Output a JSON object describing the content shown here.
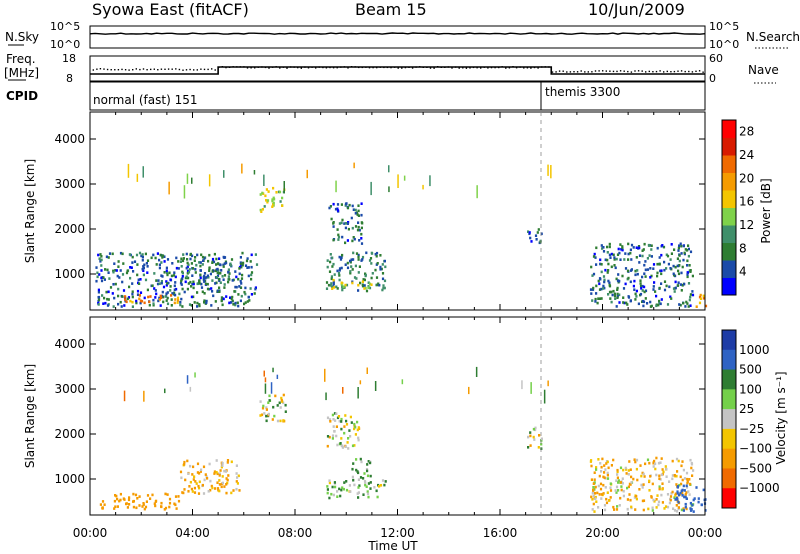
{
  "header": {
    "station": "Syowa East (fitACF)",
    "beam": "Beam 15",
    "date": "10/Jun/2009"
  },
  "top_panels": {
    "nsky_label": "N.Sky",
    "nsearch_label": "N.Search",
    "nsky_ticks": [
      "10^5",
      "10^0"
    ],
    "nsearch_ticks": [
      "10^5",
      "10^0"
    ],
    "freq_label_line1": "Freq.",
    "freq_label_line2": "[MHz]",
    "freq_ticks": [
      "18",
      "8"
    ],
    "nave_label": "Nave",
    "nave_ticks": [
      "60",
      "0"
    ],
    "cpid_label": "CPID",
    "cpid_segments": [
      "normal (fast) 151",
      "themis 3300"
    ]
  },
  "x_axis": {
    "label": "Time UT",
    "ticks": [
      "00:00",
      "04:00",
      "08:00",
      "12:00",
      "16:00",
      "20:00",
      "00:00"
    ]
  },
  "colors": {
    "power": [
      "#0000ff",
      "#1a4aa8",
      "#2e7d32",
      "#3f8f6a",
      "#7fd24a",
      "#f3c500",
      "#f59b00",
      "#f06a00",
      "#d81b00",
      "#ff0000"
    ],
    "velocity": [
      "#1e3ca6",
      "#2f63c4",
      "#2e7d32",
      "#74d04a",
      "#c4c4c4",
      "#f3c500",
      "#f59b00",
      "#f06a00",
      "#ff0000"
    ]
  },
  "chart_data": [
    {
      "type": "heatmap",
      "quantity": "Power",
      "ylabel": "Slant Range [km]",
      "yticks": [
        "1000",
        "2000",
        "3000",
        "4000"
      ],
      "ylim": [
        200,
        4600
      ],
      "xlim": [
        0,
        24
      ],
      "colorbar": {
        "title": "Power [dB]",
        "ticks": [
          "4",
          "8",
          "12",
          "16",
          "20",
          "24",
          "28"
        ],
        "range": [
          0,
          30
        ]
      },
      "blobs": [
        {
          "t0": 0.2,
          "t1": 6.5,
          "r0": 300,
          "r1": 1500,
          "v": 6
        },
        {
          "t0": 1.3,
          "t1": 3.5,
          "r0": 380,
          "r1": 560,
          "v": 20
        },
        {
          "t0": 3.5,
          "t1": 5.5,
          "r0": 800,
          "r1": 1350,
          "v": 8
        },
        {
          "t0": 6.6,
          "t1": 7.6,
          "r0": 2400,
          "r1": 2950,
          "v": 14
        },
        {
          "t0": 9.2,
          "t1": 11.5,
          "r0": 650,
          "r1": 1500,
          "v": 8
        },
        {
          "t0": 9.3,
          "t1": 11.0,
          "r0": 700,
          "r1": 900,
          "v": 14
        },
        {
          "t0": 9.3,
          "t1": 10.6,
          "r0": 1700,
          "r1": 2600,
          "v": 6
        },
        {
          "t0": 17.0,
          "t1": 17.6,
          "r0": 1700,
          "r1": 2100,
          "v": 6
        },
        {
          "t0": 19.5,
          "t1": 23.5,
          "r0": 300,
          "r1": 1700,
          "v": 6
        },
        {
          "t0": 23.5,
          "t1": 24.0,
          "r0": 300,
          "r1": 600,
          "v": 18
        }
      ]
    },
    {
      "type": "heatmap",
      "quantity": "Velocity",
      "ylabel": "Slant Range [km]",
      "yticks": [
        "1000",
        "2000",
        "3000",
        "4000"
      ],
      "ylim": [
        200,
        4600
      ],
      "xlim": [
        0,
        24
      ],
      "colorbar": {
        "title": "Velocity [m s⁻¹]",
        "ticks": [
          "1000",
          "500",
          "100",
          "25",
          "−25",
          "−100",
          "−500",
          "−1000"
        ]
      },
      "blobs": [
        {
          "t0": 0.3,
          "t1": 3.5,
          "r0": 350,
          "r1": 700,
          "v": -200
        },
        {
          "t0": 3.5,
          "t1": 5.8,
          "r0": 700,
          "r1": 1450,
          "v": -80
        },
        {
          "t0": 6.6,
          "t1": 7.6,
          "r0": 2300,
          "r1": 2950,
          "v": 0
        },
        {
          "t0": 9.2,
          "t1": 11.5,
          "r0": 600,
          "r1": 1000,
          "v": 60
        },
        {
          "t0": 10.2,
          "t1": 11.0,
          "r0": 1000,
          "r1": 1500,
          "v": 80
        },
        {
          "t0": 9.2,
          "t1": 10.5,
          "r0": 1700,
          "r1": 2500,
          "v": 0
        },
        {
          "t0": 17.0,
          "t1": 17.6,
          "r0": 1700,
          "r1": 2200,
          "v": 0
        },
        {
          "t0": 19.5,
          "t1": 23.5,
          "r0": 300,
          "r1": 1500,
          "v": -60
        },
        {
          "t0": 22.8,
          "t1": 24.0,
          "r0": 300,
          "r1": 900,
          "v": 400
        }
      ]
    }
  ]
}
